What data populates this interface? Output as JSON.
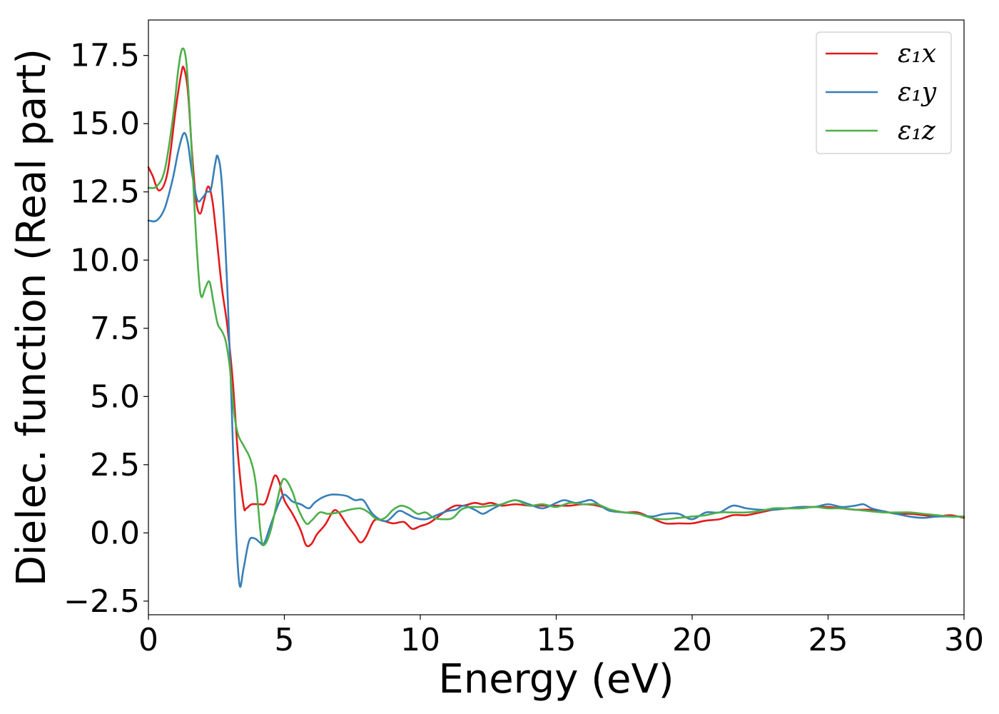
{
  "chart_data": {
    "type": "line",
    "title": "",
    "xlabel": "Energy (eV)",
    "ylabel": "Dielec. function (Real part)",
    "xlim": [
      0,
      30
    ],
    "ylim": [
      -3.0,
      18.8
    ],
    "xticks": [
      0,
      5,
      10,
      15,
      20,
      25,
      30
    ],
    "xtick_labels": [
      "0",
      "5",
      "10",
      "15",
      "20",
      "25",
      "30"
    ],
    "yticks": [
      -2.5,
      0.0,
      2.5,
      5.0,
      7.5,
      10.0,
      12.5,
      15.0,
      17.5
    ],
    "ytick_labels": [
      "−2.5",
      "0.0",
      "2.5",
      "5.0",
      "7.5",
      "10.0",
      "12.5",
      "15.0",
      "17.5"
    ],
    "grid": false,
    "legend_position": "top-right",
    "series": [
      {
        "name": "ε₁x",
        "color": "#e41a1c",
        "points": [
          [
            0,
            13.4
          ],
          [
            0.15,
            13.1
          ],
          [
            0.4,
            12.55
          ],
          [
            0.7,
            13.2
          ],
          [
            1.0,
            15.5
          ],
          [
            1.2,
            16.8
          ],
          [
            1.3,
            17.05
          ],
          [
            1.45,
            16.2
          ],
          [
            1.6,
            14.0
          ],
          [
            1.75,
            12.2
          ],
          [
            1.9,
            11.7
          ],
          [
            2.05,
            12.2
          ],
          [
            2.2,
            12.7
          ],
          [
            2.35,
            12.2
          ],
          [
            2.5,
            10.9
          ],
          [
            2.7,
            9.0
          ],
          [
            2.9,
            7.6
          ],
          [
            3.1,
            5.6
          ],
          [
            3.3,
            2.8
          ],
          [
            3.5,
            1.0
          ],
          [
            3.6,
            0.9
          ],
          [
            3.8,
            1.05
          ],
          [
            4.1,
            1.05
          ],
          [
            4.3,
            1.1
          ],
          [
            4.5,
            1.7
          ],
          [
            4.65,
            2.1
          ],
          [
            4.8,
            1.9
          ],
          [
            5.0,
            1.2
          ],
          [
            5.3,
            0.7
          ],
          [
            5.6,
            0.1
          ],
          [
            5.8,
            -0.45
          ],
          [
            6.0,
            -0.4
          ],
          [
            6.2,
            -0.05
          ],
          [
            6.5,
            0.3
          ],
          [
            6.8,
            0.8
          ],
          [
            7.0,
            0.75
          ],
          [
            7.3,
            0.3
          ],
          [
            7.6,
            -0.1
          ],
          [
            7.8,
            -0.35
          ],
          [
            8.0,
            -0.15
          ],
          [
            8.3,
            0.45
          ],
          [
            8.6,
            0.45
          ],
          [
            9.0,
            0.35
          ],
          [
            9.4,
            0.4
          ],
          [
            9.7,
            0.15
          ],
          [
            10.0,
            0.25
          ],
          [
            10.3,
            0.35
          ],
          [
            10.6,
            0.55
          ],
          [
            11.0,
            0.85
          ],
          [
            11.3,
            1.0
          ],
          [
            11.6,
            1.0
          ],
          [
            12.0,
            1.1
          ],
          [
            12.3,
            1.05
          ],
          [
            12.6,
            1.1
          ],
          [
            13.0,
            1.0
          ],
          [
            13.5,
            1.05
          ],
          [
            14.0,
            1.0
          ],
          [
            14.5,
            1.0
          ],
          [
            15.0,
            1.0
          ],
          [
            15.5,
            1.0
          ],
          [
            16.0,
            1.05
          ],
          [
            16.5,
            1.0
          ],
          [
            17.0,
            0.85
          ],
          [
            17.5,
            0.75
          ],
          [
            18.0,
            0.75
          ],
          [
            18.5,
            0.55
          ],
          [
            19.0,
            0.35
          ],
          [
            19.5,
            0.35
          ],
          [
            20.0,
            0.35
          ],
          [
            20.5,
            0.45
          ],
          [
            21.0,
            0.5
          ],
          [
            21.5,
            0.65
          ],
          [
            22.0,
            0.65
          ],
          [
            22.5,
            0.75
          ],
          [
            23.0,
            0.85
          ],
          [
            23.5,
            0.9
          ],
          [
            24.0,
            0.95
          ],
          [
            24.5,
            0.95
          ],
          [
            25.0,
            0.95
          ],
          [
            25.5,
            0.9
          ],
          [
            26.0,
            0.85
          ],
          [
            26.5,
            0.85
          ],
          [
            27.0,
            0.8
          ],
          [
            27.5,
            0.7
          ],
          [
            28.0,
            0.7
          ],
          [
            28.5,
            0.65
          ],
          [
            29.0,
            0.6
          ],
          [
            29.5,
            0.65
          ],
          [
            30.0,
            0.55
          ]
        ]
      },
      {
        "name": "ε₁y",
        "color": "#377eb8",
        "points": [
          [
            0,
            11.45
          ],
          [
            0.3,
            11.45
          ],
          [
            0.6,
            11.9
          ],
          [
            0.9,
            13.0
          ],
          [
            1.1,
            14.0
          ],
          [
            1.3,
            14.65
          ],
          [
            1.45,
            14.3
          ],
          [
            1.6,
            13.2
          ],
          [
            1.8,
            12.2
          ],
          [
            2.0,
            12.3
          ],
          [
            2.15,
            12.5
          ],
          [
            2.3,
            12.6
          ],
          [
            2.45,
            13.5
          ],
          [
            2.55,
            13.8
          ],
          [
            2.7,
            12.8
          ],
          [
            2.9,
            9.0
          ],
          [
            3.05,
            5.0
          ],
          [
            3.2,
            0.5
          ],
          [
            3.35,
            -1.9
          ],
          [
            3.5,
            -1.3
          ],
          [
            3.7,
            -0.3
          ],
          [
            3.9,
            -0.2
          ],
          [
            4.1,
            -0.35
          ],
          [
            4.25,
            -0.4
          ],
          [
            4.5,
            0.3
          ],
          [
            4.8,
            1.1
          ],
          [
            5.0,
            1.4
          ],
          [
            5.3,
            1.15
          ],
          [
            5.6,
            1.05
          ],
          [
            5.9,
            0.9
          ],
          [
            6.1,
            1.1
          ],
          [
            6.4,
            1.3
          ],
          [
            6.7,
            1.4
          ],
          [
            7.0,
            1.4
          ],
          [
            7.3,
            1.35
          ],
          [
            7.6,
            1.2
          ],
          [
            7.9,
            1.2
          ],
          [
            8.2,
            0.75
          ],
          [
            8.5,
            0.5
          ],
          [
            8.8,
            0.45
          ],
          [
            9.2,
            0.8
          ],
          [
            9.5,
            0.7
          ],
          [
            9.8,
            0.55
          ],
          [
            10.2,
            0.5
          ],
          [
            10.6,
            0.65
          ],
          [
            11.0,
            0.8
          ],
          [
            11.3,
            0.85
          ],
          [
            11.6,
            1.0
          ],
          [
            12.0,
            0.85
          ],
          [
            12.3,
            0.7
          ],
          [
            12.6,
            0.85
          ],
          [
            13.0,
            1.05
          ],
          [
            13.5,
            1.2
          ],
          [
            14.0,
            1.05
          ],
          [
            14.5,
            0.9
          ],
          [
            15.0,
            1.1
          ],
          [
            15.3,
            1.2
          ],
          [
            15.7,
            1.1
          ],
          [
            16.0,
            1.15
          ],
          [
            16.3,
            1.2
          ],
          [
            16.7,
            0.95
          ],
          [
            17.0,
            0.8
          ],
          [
            17.5,
            0.75
          ],
          [
            18.0,
            0.7
          ],
          [
            18.5,
            0.6
          ],
          [
            19.0,
            0.7
          ],
          [
            19.5,
            0.7
          ],
          [
            20.0,
            0.5
          ],
          [
            20.5,
            0.75
          ],
          [
            21.0,
            0.75
          ],
          [
            21.5,
            1.0
          ],
          [
            22.0,
            0.9
          ],
          [
            22.5,
            0.85
          ],
          [
            23.0,
            0.85
          ],
          [
            23.5,
            0.9
          ],
          [
            24.0,
            0.95
          ],
          [
            24.5,
            0.95
          ],
          [
            25.0,
            1.05
          ],
          [
            25.5,
            0.95
          ],
          [
            26.0,
            1.0
          ],
          [
            26.3,
            1.05
          ],
          [
            26.6,
            0.9
          ],
          [
            27.0,
            0.8
          ],
          [
            27.5,
            0.7
          ],
          [
            28.0,
            0.6
          ],
          [
            28.5,
            0.55
          ],
          [
            29.0,
            0.6
          ],
          [
            29.5,
            0.6
          ],
          [
            30.0,
            0.6
          ]
        ]
      },
      {
        "name": "ε₁z",
        "color": "#4daf4a",
        "points": [
          [
            0,
            12.65
          ],
          [
            0.3,
            12.7
          ],
          [
            0.6,
            13.3
          ],
          [
            0.9,
            15.2
          ],
          [
            1.1,
            17.0
          ],
          [
            1.25,
            17.75
          ],
          [
            1.4,
            17.2
          ],
          [
            1.55,
            14.8
          ],
          [
            1.7,
            11.8
          ],
          [
            1.85,
            9.4
          ],
          [
            1.95,
            8.65
          ],
          [
            2.1,
            9.0
          ],
          [
            2.25,
            9.2
          ],
          [
            2.4,
            8.4
          ],
          [
            2.55,
            7.65
          ],
          [
            2.7,
            7.4
          ],
          [
            2.85,
            7.0
          ],
          [
            3.0,
            6.0
          ],
          [
            3.15,
            4.4
          ],
          [
            3.3,
            3.6
          ],
          [
            3.5,
            3.2
          ],
          [
            3.75,
            2.7
          ],
          [
            3.95,
            1.8
          ],
          [
            4.15,
            -0.2
          ],
          [
            4.3,
            -0.4
          ],
          [
            4.5,
            0.1
          ],
          [
            4.7,
            1.0
          ],
          [
            4.9,
            1.85
          ],
          [
            5.05,
            1.95
          ],
          [
            5.3,
            1.5
          ],
          [
            5.5,
            0.9
          ],
          [
            5.8,
            0.35
          ],
          [
            6.0,
            0.45
          ],
          [
            6.3,
            0.75
          ],
          [
            6.6,
            0.7
          ],
          [
            7.0,
            0.75
          ],
          [
            7.4,
            0.85
          ],
          [
            7.8,
            0.9
          ],
          [
            8.1,
            0.75
          ],
          [
            8.4,
            0.5
          ],
          [
            8.7,
            0.55
          ],
          [
            9.0,
            0.85
          ],
          [
            9.3,
            1.0
          ],
          [
            9.6,
            0.9
          ],
          [
            9.9,
            0.7
          ],
          [
            10.2,
            0.75
          ],
          [
            10.5,
            0.55
          ],
          [
            10.9,
            0.5
          ],
          [
            11.2,
            0.55
          ],
          [
            11.5,
            0.85
          ],
          [
            11.8,
            0.95
          ],
          [
            12.2,
            0.95
          ],
          [
            12.6,
            1.0
          ],
          [
            13.0,
            1.05
          ],
          [
            13.5,
            1.2
          ],
          [
            14.0,
            1.0
          ],
          [
            14.5,
            1.05
          ],
          [
            15.0,
            0.95
          ],
          [
            15.5,
            1.1
          ],
          [
            16.0,
            1.05
          ],
          [
            16.5,
            1.05
          ],
          [
            17.0,
            0.85
          ],
          [
            17.5,
            0.75
          ],
          [
            18.0,
            0.7
          ],
          [
            18.5,
            0.55
          ],
          [
            19.0,
            0.5
          ],
          [
            19.5,
            0.55
          ],
          [
            20.0,
            0.6
          ],
          [
            20.5,
            0.65
          ],
          [
            21.0,
            0.75
          ],
          [
            21.5,
            0.75
          ],
          [
            22.0,
            0.75
          ],
          [
            22.5,
            0.8
          ],
          [
            23.0,
            0.9
          ],
          [
            23.5,
            0.9
          ],
          [
            24.0,
            0.9
          ],
          [
            24.5,
            0.95
          ],
          [
            25.0,
            0.9
          ],
          [
            25.5,
            0.9
          ],
          [
            26.0,
            0.85
          ],
          [
            26.5,
            0.8
          ],
          [
            27.0,
            0.75
          ],
          [
            27.5,
            0.75
          ],
          [
            28.0,
            0.75
          ],
          [
            28.5,
            0.7
          ],
          [
            29.0,
            0.65
          ],
          [
            29.5,
            0.6
          ],
          [
            30.0,
            0.6
          ]
        ]
      }
    ]
  }
}
